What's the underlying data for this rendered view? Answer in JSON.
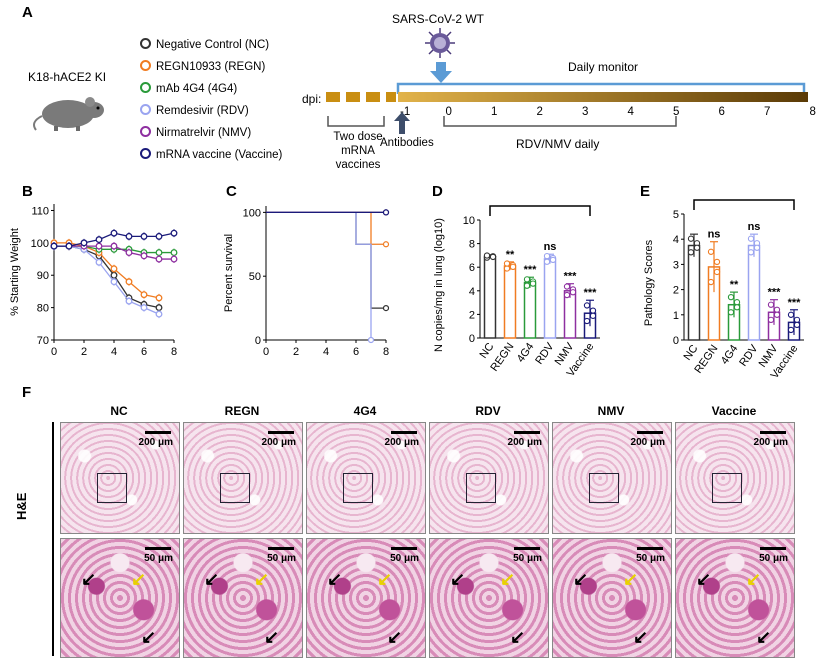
{
  "panels": {
    "A": "A",
    "B": "B",
    "C": "C",
    "D": "D",
    "E": "E",
    "F": "F"
  },
  "panelA": {
    "model": "K18-hACE2 KI",
    "legend": [
      {
        "label": "Negative Control (NC)",
        "color": "#333333"
      },
      {
        "label": "REGN10933 (REGN)",
        "color": "#f07c22"
      },
      {
        "label": "mAb 4G4 (4G4)",
        "color": "#2a9a3a"
      },
      {
        "label": "Remdesivir (RDV)",
        "color": "#9aa4f0"
      },
      {
        "label": "Nirmatrelvir (NMV)",
        "color": "#8e2fa0"
      },
      {
        "label": "mRNA vaccine (Vaccine)",
        "color": "#1a1a7a"
      }
    ],
    "virus": "SARS-CoV-2 WT",
    "daily_monitor": "Daily monitor",
    "dpi": "dpi:",
    "timeline_ticks": [
      "-1",
      "0",
      "1",
      "2",
      "3",
      "4",
      "5",
      "6",
      "7",
      "8"
    ],
    "two_dose": "Two dose",
    "mrna": "mRNA",
    "vaccines": "vaccines",
    "antibodies": "Antibodies",
    "rdv_nmv": "RDV/NMV daily"
  },
  "chart_data": [
    {
      "panel": "B",
      "type": "line",
      "ylabel": "% Starting Weight",
      "x": [
        0,
        1,
        2,
        3,
        4,
        5,
        6,
        7,
        8
      ],
      "xticks": [
        "0",
        "2",
        "4",
        "6",
        "8"
      ],
      "yticks": [
        "70",
        "80",
        "90",
        "100",
        "110"
      ],
      "ylim": [
        70,
        112
      ],
      "xlim": [
        0,
        8
      ],
      "series": [
        {
          "name": "NC",
          "color": "#333333",
          "x": [
            0,
            1,
            2,
            3,
            4,
            5,
            6,
            7,
            8
          ],
          "values": [
            99,
            99,
            98,
            96,
            90,
            83,
            81,
            80,
            null
          ]
        },
        {
          "name": "REGN",
          "color": "#f07c22",
          "x": [
            0,
            1,
            2,
            3,
            4,
            5,
            6,
            7,
            8
          ],
          "values": [
            100,
            100,
            99,
            97,
            92,
            88,
            84,
            83,
            null
          ]
        },
        {
          "name": "4G4",
          "color": "#2a9a3a",
          "x": [
            0,
            1,
            2,
            3,
            4,
            5,
            6,
            7,
            8
          ],
          "values": [
            99,
            99,
            99,
            98,
            98,
            98,
            97,
            97,
            97
          ]
        },
        {
          "name": "RDV",
          "color": "#9aa4f0",
          "x": [
            0,
            1,
            2,
            3,
            4,
            5,
            6,
            7,
            8
          ],
          "values": [
            99,
            99,
            98,
            94,
            88,
            82,
            80,
            78,
            null
          ]
        },
        {
          "name": "NMV",
          "color": "#8e2fa0",
          "x": [
            0,
            1,
            2,
            3,
            4,
            5,
            6,
            7,
            8
          ],
          "values": [
            99,
            99,
            99,
            99,
            99,
            97,
            96,
            95,
            95
          ]
        },
        {
          "name": "Vaccine",
          "color": "#1a1a7a",
          "x": [
            0,
            1,
            2,
            3,
            4,
            5,
            6,
            7,
            8
          ],
          "values": [
            99,
            99,
            100,
            101,
            103,
            102,
            102,
            102,
            103
          ]
        }
      ]
    },
    {
      "panel": "C",
      "type": "line",
      "ylabel": "Percent survival",
      "xticks": [
        "0",
        "2",
        "4",
        "6",
        "8"
      ],
      "yticks": [
        "0",
        "50",
        "100"
      ],
      "ylim": [
        0,
        105
      ],
      "xlim": [
        0,
        8
      ],
      "series": [
        {
          "name": "NC",
          "color": "#333333",
          "x": [
            0,
            6,
            6,
            7,
            7,
            8
          ],
          "values": [
            100,
            100,
            75,
            75,
            25,
            25
          ]
        },
        {
          "name": "REGN",
          "color": "#f07c22",
          "x": [
            0,
            7,
            7,
            8
          ],
          "values": [
            100,
            100,
            75,
            75
          ]
        },
        {
          "name": "4G4",
          "color": "#2a9a3a",
          "x": [
            0,
            8
          ],
          "values": [
            100,
            100
          ]
        },
        {
          "name": "RDV",
          "color": "#9aa4f0",
          "x": [
            0,
            6,
            6,
            7,
            7
          ],
          "values": [
            100,
            100,
            75,
            75,
            0
          ]
        },
        {
          "name": "NMV",
          "color": "#8e2fa0",
          "x": [
            0,
            8
          ],
          "values": [
            100,
            100
          ]
        },
        {
          "name": "Vaccine",
          "color": "#1a1a7a",
          "x": [
            0,
            8
          ],
          "values": [
            100,
            100
          ]
        }
      ]
    },
    {
      "panel": "D",
      "type": "bar",
      "ylabel": "N copies/mg in lung (log10)",
      "categories": [
        "NC",
        "REGN",
        "4G4",
        "RDV",
        "NMV",
        "Vaccine"
      ],
      "values": [
        6.9,
        6.1,
        4.7,
        6.7,
        4.0,
        2.1
      ],
      "errors": [
        0.15,
        0.35,
        0.45,
        0.4,
        0.6,
        1.1
      ],
      "colors": [
        "#333333",
        "#f07c22",
        "#2a9a3a",
        "#9aa4f0",
        "#8e2fa0",
        "#1a1a7a"
      ],
      "significance": [
        "",
        "**",
        "***",
        "ns",
        "***",
        "***"
      ],
      "yticks": [
        "0",
        "2",
        "4",
        "6",
        "8",
        "10"
      ],
      "ylim": [
        0,
        10
      ]
    },
    {
      "panel": "E",
      "type": "bar",
      "ylabel": "Pathology Scores",
      "categories": [
        "NC",
        "REGN",
        "4G4",
        "RDV",
        "NMV",
        "Vaccine"
      ],
      "values": [
        3.75,
        2.9,
        1.4,
        3.75,
        1.1,
        0.7
      ],
      "errors": [
        0.45,
        1.0,
        0.5,
        0.45,
        0.5,
        0.5
      ],
      "colors": [
        "#333333",
        "#f07c22",
        "#2a9a3a",
        "#9aa4f0",
        "#8e2fa0",
        "#1a1a7a"
      ],
      "significance": [
        "",
        "ns",
        "**",
        "ns",
        "***",
        "***"
      ],
      "yticks": [
        "0",
        "1",
        "2",
        "3",
        "4",
        "5"
      ],
      "ylim": [
        0,
        5
      ]
    }
  ],
  "panelF": {
    "columns": [
      "NC",
      "REGN",
      "4G4",
      "RDV",
      "NMV",
      "Vaccine"
    ],
    "stain": "H&E",
    "scale_top": "200 μm",
    "scale_bottom": "50 μm"
  }
}
